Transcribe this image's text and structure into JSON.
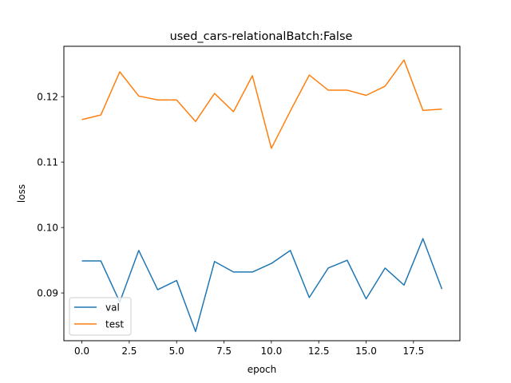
{
  "chart_data": {
    "type": "line",
    "title": "used_cars-relationalBatch:False",
    "xlabel": "epoch",
    "ylabel": "loss",
    "xlim": [
      -0.95,
      19.95
    ],
    "ylim": [
      0.0827,
      0.1277
    ],
    "x_ticks": [
      0.0,
      2.5,
      5.0,
      7.5,
      10.0,
      12.5,
      15.0,
      17.5
    ],
    "x_tick_labels": [
      "0.0",
      "2.5",
      "5.0",
      "7.5",
      "10.0",
      "12.5",
      "15.0",
      "17.5"
    ],
    "y_ticks": [
      0.09,
      0.1,
      0.11,
      0.12
    ],
    "y_tick_labels": [
      "0.09",
      "0.10",
      "0.11",
      "0.12"
    ],
    "grid": false,
    "legend_position": "lower-left",
    "x": [
      0,
      1,
      2,
      3,
      4,
      5,
      6,
      7,
      8,
      9,
      10,
      11,
      12,
      13,
      14,
      15,
      16,
      17,
      18,
      19
    ],
    "series": [
      {
        "name": "val",
        "color": "#1f77b4",
        "values": [
          0.0949,
          0.0949,
          0.0886,
          0.0965,
          0.0905,
          0.0919,
          0.0841,
          0.0948,
          0.0932,
          0.0932,
          0.0945,
          0.0965,
          0.0893,
          0.0938,
          0.095,
          0.0891,
          0.0938,
          0.0912,
          0.0983,
          0.0906
        ]
      },
      {
        "name": "test",
        "color": "#ff7f0e",
        "values": [
          0.1165,
          0.1172,
          0.1238,
          0.1201,
          0.1195,
          0.1195,
          0.1162,
          0.1205,
          0.1177,
          0.1232,
          0.1121,
          0.1178,
          0.1233,
          0.121,
          0.121,
          0.1202,
          0.1216,
          0.1256,
          0.1179,
          0.1181
        ]
      }
    ]
  }
}
